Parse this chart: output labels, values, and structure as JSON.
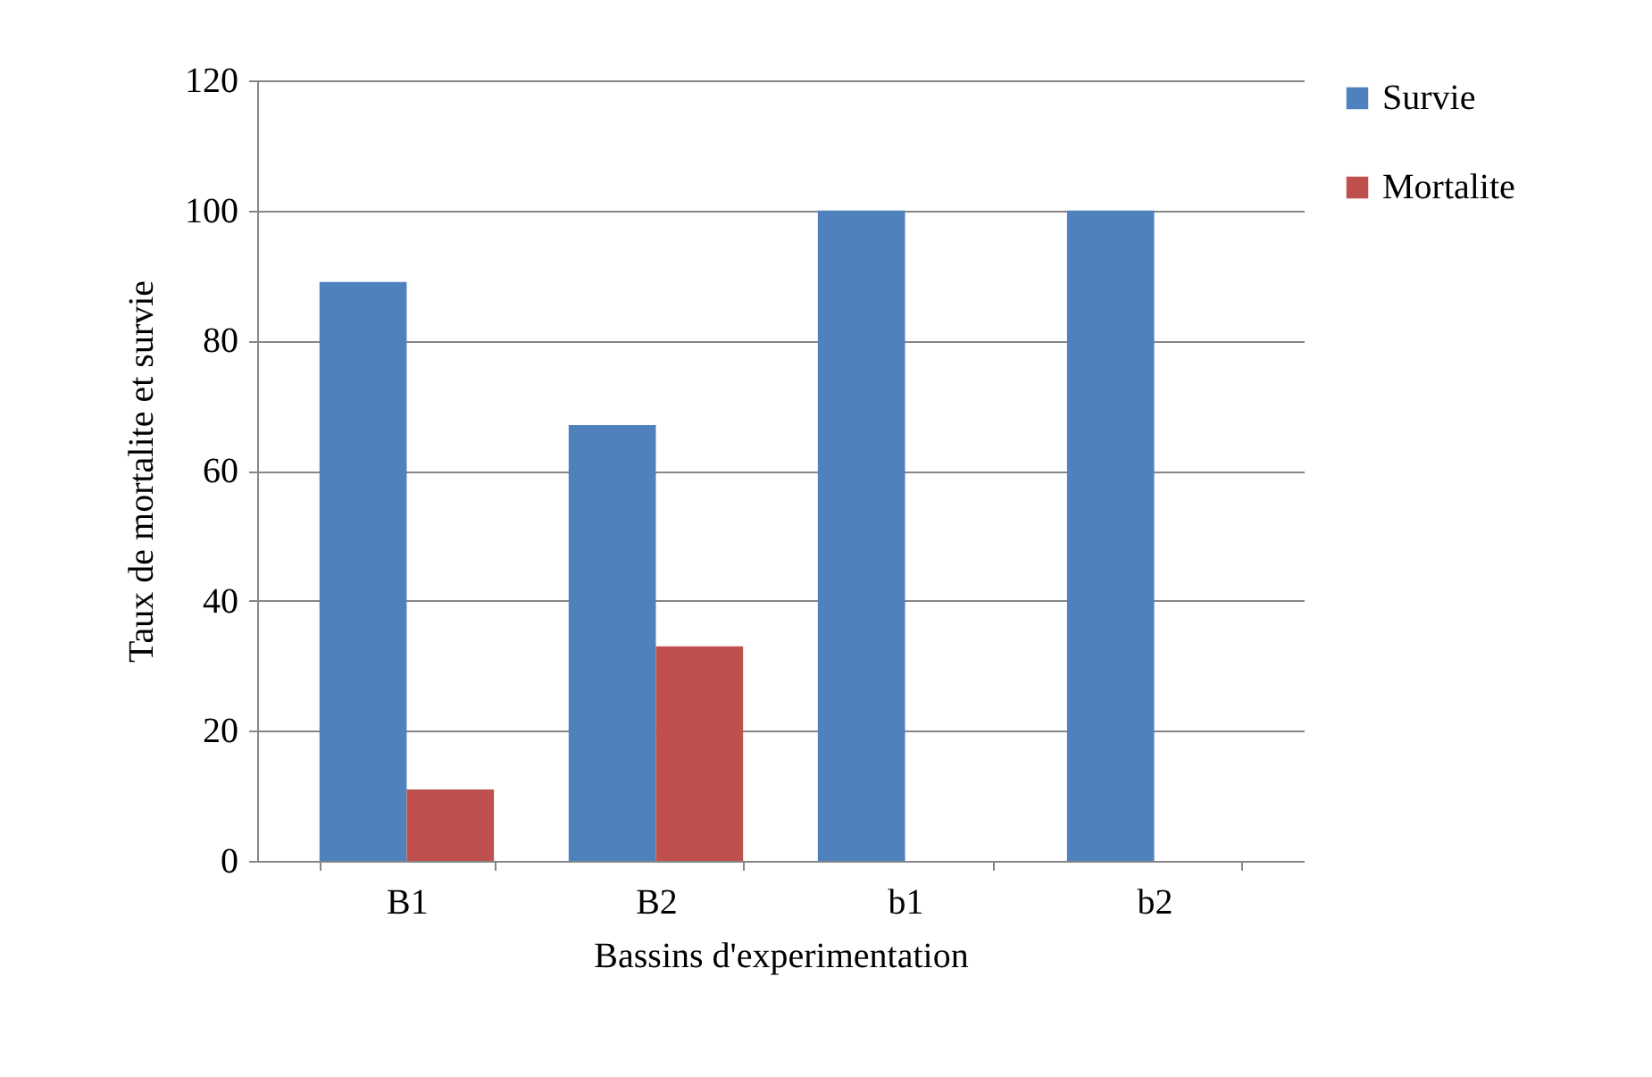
{
  "chart_data": {
    "type": "bar",
    "xlabel": "Bassins d'experimentation",
    "ylabel": "Taux de mortalite et survie",
    "categories": [
      "B1",
      "B2",
      "b1",
      "b2"
    ],
    "series": [
      {
        "name": "Survie",
        "color": "#4f81bd",
        "values": [
          89,
          67,
          100,
          100
        ]
      },
      {
        "name": "Mortalite",
        "color": "#c0504d",
        "values": [
          11,
          33,
          0,
          0
        ]
      }
    ],
    "ylim": [
      0,
      120
    ],
    "yticks": [
      0,
      20,
      40,
      60,
      80,
      100,
      120
    ],
    "grid": "y",
    "legend": "right"
  }
}
